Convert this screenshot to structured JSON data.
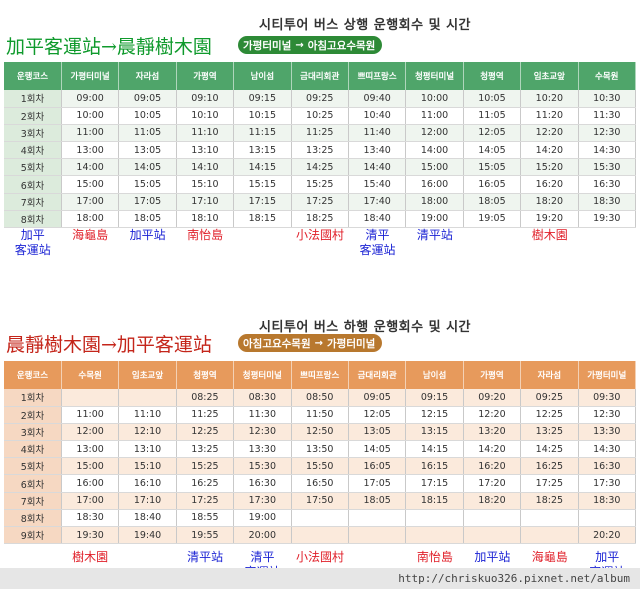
{
  "upbound": {
    "title": "시티투어 버스 상행 운행회수 및 시간",
    "route_zh": "加平客運站→晨靜樹木園",
    "route_ko": {
      "from": "가평터미널",
      "arrow": "→",
      "to": "아침고요수목원"
    },
    "header_color": "#4fa56a",
    "headers": [
      "운행코스",
      "가평터미널",
      "자라섬",
      "가평역",
      "남이섬",
      "금대리회관",
      "쁘띠프랑스",
      "청평터미널",
      "청평역",
      "임초교앞",
      "수목원"
    ],
    "rows": [
      [
        "1회차",
        "09:00",
        "09:05",
        "09:10",
        "09:15",
        "09:25",
        "09:40",
        "10:00",
        "10:05",
        "10:20",
        "10:30"
      ],
      [
        "2회차",
        "10:00",
        "10:05",
        "10:10",
        "10:15",
        "10:25",
        "10:40",
        "11:00",
        "11:05",
        "11:20",
        "11:30"
      ],
      [
        "3회차",
        "11:00",
        "11:05",
        "11:10",
        "11:15",
        "11:25",
        "11:40",
        "12:00",
        "12:05",
        "12:20",
        "12:30"
      ],
      [
        "4회차",
        "13:00",
        "13:05",
        "13:10",
        "13:15",
        "13:25",
        "13:40",
        "14:00",
        "14:05",
        "14:20",
        "14:30"
      ],
      [
        "5회차",
        "14:00",
        "14:05",
        "14:10",
        "14:15",
        "14:25",
        "14:40",
        "15:00",
        "15:05",
        "15:20",
        "15:30"
      ],
      [
        "6회차",
        "15:00",
        "15:05",
        "15:10",
        "15:15",
        "15:25",
        "15:40",
        "16:00",
        "16:05",
        "16:20",
        "16:30"
      ],
      [
        "7회차",
        "17:00",
        "17:05",
        "17:10",
        "17:15",
        "17:25",
        "17:40",
        "18:00",
        "18:05",
        "18:20",
        "18:30"
      ],
      [
        "8회차",
        "18:00",
        "18:05",
        "18:10",
        "18:15",
        "18:25",
        "18:40",
        "19:00",
        "19:05",
        "19:20",
        "19:30"
      ]
    ],
    "stops_zh": [
      {
        "label": "加平\n客運站",
        "color": "blue"
      },
      {
        "label": "海龜島",
        "color": "red"
      },
      {
        "label": "加平站",
        "color": "blue"
      },
      {
        "label": "南怡島",
        "color": "red"
      },
      {
        "label": "",
        "color": "red"
      },
      {
        "label": "小法國村",
        "color": "red"
      },
      {
        "label": "清平\n客運站",
        "color": "blue"
      },
      {
        "label": "清平站",
        "color": "blue"
      },
      {
        "label": "",
        "color": "red"
      },
      {
        "label": "樹木園",
        "color": "red"
      }
    ]
  },
  "downbound": {
    "title": "시티투어 버스 하행 운행회수 및 시간",
    "route_zh": "晨靜樹木園→加平客運站",
    "route_ko": {
      "from": "아침고요수목원",
      "arrow": "→",
      "to": "가평터미널"
    },
    "header_color": "#e79a5c",
    "headers": [
      "운행코스",
      "수목원",
      "임초교앞",
      "청평역",
      "청평터미널",
      "쁘띠프랑스",
      "금대리회관",
      "남이섬",
      "가평역",
      "자라섬",
      "가평터미널"
    ],
    "rows": [
      [
        "1회차",
        "",
        "",
        "08:25",
        "08:30",
        "08:50",
        "09:05",
        "09:15",
        "09:20",
        "09:25",
        "09:30"
      ],
      [
        "2회차",
        "11:00",
        "11:10",
        "11:25",
        "11:30",
        "11:50",
        "12:05",
        "12:15",
        "12:20",
        "12:25",
        "12:30"
      ],
      [
        "3회차",
        "12:00",
        "12:10",
        "12:25",
        "12:30",
        "12:50",
        "13:05",
        "13:15",
        "13:20",
        "13:25",
        "13:30"
      ],
      [
        "4회차",
        "13:00",
        "13:10",
        "13:25",
        "13:30",
        "13:50",
        "14:05",
        "14:15",
        "14:20",
        "14:25",
        "14:30"
      ],
      [
        "5회차",
        "15:00",
        "15:10",
        "15:25",
        "15:30",
        "15:50",
        "16:05",
        "16:15",
        "16:20",
        "16:25",
        "16:30"
      ],
      [
        "6회차",
        "16:00",
        "16:10",
        "16:25",
        "16:30",
        "16:50",
        "17:05",
        "17:15",
        "17:20",
        "17:25",
        "17:30"
      ],
      [
        "7회차",
        "17:00",
        "17:10",
        "17:25",
        "17:30",
        "17:50",
        "18:05",
        "18:15",
        "18:20",
        "18:25",
        "18:30"
      ],
      [
        "8회차",
        "18:30",
        "18:40",
        "18:55",
        "19:00",
        "",
        "",
        "",
        "",
        "",
        ""
      ],
      [
        "9회차",
        "19:30",
        "19:40",
        "19:55",
        "20:00",
        "",
        "",
        "",
        "",
        "",
        "20:20"
      ]
    ],
    "stops_zh": [
      {
        "label": "",
        "color": "red"
      },
      {
        "label": "樹木園",
        "color": "red"
      },
      {
        "label": "",
        "color": "red"
      },
      {
        "label": "清平站",
        "color": "blue"
      },
      {
        "label": "清平\n客運站",
        "color": "blue"
      },
      {
        "label": "小法國村",
        "color": "red"
      },
      {
        "label": "",
        "color": "red"
      },
      {
        "label": "南怡島",
        "color": "red"
      },
      {
        "label": "加平站",
        "color": "blue"
      },
      {
        "label": "海龜島",
        "color": "red"
      },
      {
        "label": "加平\n客運站",
        "color": "blue"
      }
    ]
  },
  "watermark": "http://chriskuo326.pixnet.net/album"
}
